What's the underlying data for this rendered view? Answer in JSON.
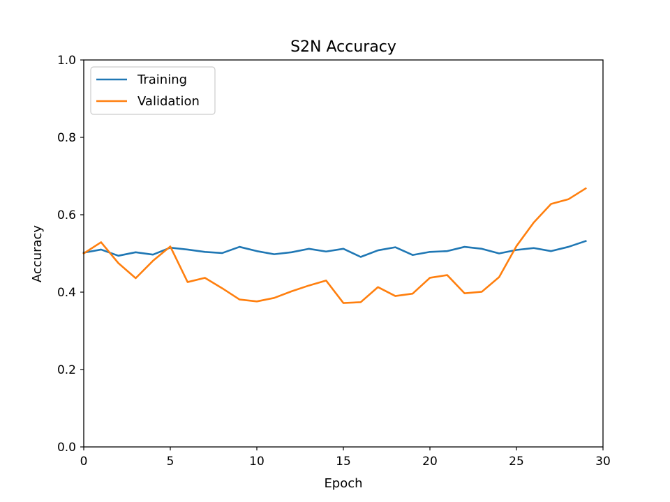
{
  "chart_data": {
    "type": "line",
    "title": "S2N Accuracy",
    "xlabel": "Epoch",
    "ylabel": "Accuracy",
    "xlim": [
      0,
      30
    ],
    "ylim": [
      0,
      1.0
    ],
    "xticks": [
      "0",
      "5",
      "10",
      "15",
      "20",
      "25",
      "30"
    ],
    "yticks": [
      "0.0",
      "0.2",
      "0.4",
      "0.6",
      "0.8",
      "1.0"
    ],
    "grid": false,
    "legend_position": "top-left",
    "x": [
      0,
      1,
      2,
      3,
      4,
      5,
      6,
      7,
      8,
      9,
      10,
      11,
      12,
      13,
      14,
      15,
      16,
      17,
      18,
      19,
      20,
      21,
      22,
      23,
      24,
      25,
      26,
      27,
      28,
      29
    ],
    "series": [
      {
        "name": "Training",
        "color": "#1f77b4",
        "values": [
          0.502,
          0.51,
          0.494,
          0.503,
          0.497,
          0.515,
          0.51,
          0.504,
          0.501,
          0.517,
          0.506,
          0.498,
          0.503,
          0.512,
          0.505,
          0.512,
          0.491,
          0.508,
          0.516,
          0.496,
          0.504,
          0.506,
          0.517,
          0.512,
          0.5,
          0.509,
          0.514,
          0.506,
          0.517,
          0.532
        ]
      },
      {
        "name": "Validation",
        "color": "#ff7f0e",
        "values": [
          0.5,
          0.529,
          0.475,
          0.436,
          0.481,
          0.518,
          0.426,
          0.437,
          0.41,
          0.381,
          0.376,
          0.385,
          0.402,
          0.417,
          0.43,
          0.372,
          0.374,
          0.413,
          0.39,
          0.396,
          0.437,
          0.444,
          0.397,
          0.401,
          0.439,
          0.519,
          0.58,
          0.628,
          0.64,
          0.668
        ]
      }
    ]
  }
}
